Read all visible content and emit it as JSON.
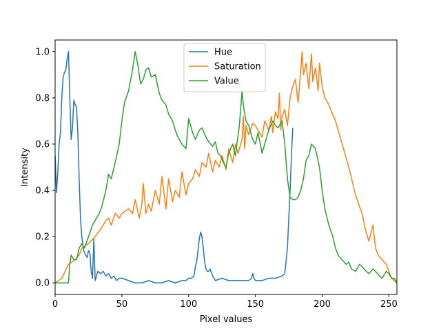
{
  "chart_data": {
    "type": "line",
    "title": "",
    "xlabel": "Pixel values",
    "ylabel": "Intensity",
    "xlim": [
      0,
      256
    ],
    "ylim": [
      -0.05,
      1.05
    ],
    "xticks": [
      0,
      50,
      100,
      150,
      200,
      250
    ],
    "yticks": [
      0.0,
      0.2,
      0.4,
      0.6,
      0.8,
      1.0
    ],
    "xtick_labels": [
      "0",
      "50",
      "100",
      "150",
      "200",
      "250"
    ],
    "ytick_labels": [
      "0.0",
      "0.2",
      "0.4",
      "0.6",
      "0.8",
      "1.0"
    ],
    "grid": false,
    "legend": "top-center",
    "series": [
      {
        "name": "Hue",
        "color": "#1f77b4",
        "x": [
          0,
          1,
          2,
          3,
          4,
          5,
          6,
          7,
          8,
          9,
          10,
          11,
          12,
          13,
          14,
          15,
          16,
          17,
          18,
          19,
          20,
          21,
          22,
          23,
          24,
          25,
          26,
          27,
          28,
          29,
          30,
          32,
          34,
          36,
          38,
          40,
          42,
          44,
          46,
          48,
          50,
          55,
          60,
          65,
          70,
          75,
          80,
          85,
          90,
          95,
          98,
          100,
          102,
          104,
          105,
          106,
          107,
          108,
          109,
          110,
          111,
          112,
          113,
          114,
          115,
          116,
          118,
          120,
          125,
          130,
          135,
          140,
          145,
          147,
          148,
          149,
          150,
          155,
          160,
          165,
          170,
          172,
          174,
          175,
          176,
          177,
          178
        ],
        "y": [
          0.55,
          0.39,
          0.48,
          0.6,
          0.65,
          0.8,
          0.89,
          0.91,
          0.92,
          0.97,
          1.0,
          0.8,
          0.62,
          0.67,
          0.79,
          0.77,
          0.76,
          0.65,
          0.45,
          0.28,
          0.2,
          0.15,
          0.13,
          0.12,
          0.11,
          0.14,
          0.13,
          0.05,
          0.02,
          0.19,
          0.01,
          0.05,
          0.04,
          0.05,
          0.03,
          0.04,
          0.02,
          0.03,
          0.01,
          0.02,
          0.02,
          0.01,
          0.0,
          0.0,
          0.01,
          0.0,
          0.0,
          0.01,
          0.0,
          0.01,
          0.01,
          0.02,
          0.02,
          0.03,
          0.07,
          0.09,
          0.14,
          0.19,
          0.22,
          0.2,
          0.15,
          0.09,
          0.06,
          0.05,
          0.05,
          0.06,
          0.03,
          0.01,
          0.02,
          0.01,
          0.01,
          0.01,
          0.01,
          0.02,
          0.04,
          0.02,
          0.01,
          0.01,
          0.02,
          0.02,
          0.03,
          0.04,
          0.15,
          0.28,
          0.4,
          0.55,
          0.67
        ]
      },
      {
        "name": "Saturation",
        "color": "#ff7f0e",
        "x": [
          0,
          5,
          10,
          15,
          18,
          20,
          25,
          30,
          35,
          38,
          40,
          42,
          45,
          48,
          50,
          55,
          58,
          60,
          63,
          65,
          66,
          68,
          70,
          72,
          75,
          78,
          80,
          83,
          85,
          88,
          90,
          93,
          95,
          98,
          100,
          103,
          105,
          108,
          110,
          113,
          115,
          118,
          120,
          123,
          125,
          128,
          130,
          133,
          135,
          137,
          140,
          141,
          142,
          143,
          145,
          148,
          150,
          152,
          155,
          157,
          160,
          162,
          163,
          165,
          167,
          168,
          169,
          170,
          172,
          174,
          176,
          178,
          180,
          182,
          184,
          185,
          186,
          188,
          190,
          192,
          193,
          195,
          197,
          198,
          200,
          202,
          205,
          210,
          215,
          220,
          225,
          228,
          230,
          232,
          235,
          238,
          240,
          242,
          245,
          248,
          250,
          252,
          254,
          256
        ],
        "y": [
          0.0,
          0.02,
          0.08,
          0.1,
          0.12,
          0.15,
          0.17,
          0.2,
          0.24,
          0.27,
          0.28,
          0.25,
          0.3,
          0.28,
          0.3,
          0.32,
          0.3,
          0.36,
          0.28,
          0.34,
          0.43,
          0.3,
          0.34,
          0.31,
          0.4,
          0.34,
          0.46,
          0.32,
          0.45,
          0.35,
          0.4,
          0.37,
          0.48,
          0.38,
          0.43,
          0.45,
          0.49,
          0.46,
          0.52,
          0.5,
          0.56,
          0.48,
          0.53,
          0.5,
          0.55,
          0.49,
          0.58,
          0.52,
          0.6,
          0.56,
          0.62,
          0.72,
          0.58,
          0.68,
          0.64,
          0.69,
          0.68,
          0.66,
          0.63,
          0.7,
          0.66,
          0.72,
          0.65,
          0.74,
          0.71,
          0.82,
          0.66,
          0.72,
          0.75,
          0.68,
          0.8,
          0.85,
          0.88,
          0.78,
          0.92,
          1.0,
          0.9,
          0.95,
          0.84,
          0.99,
          0.87,
          0.93,
          0.83,
          0.95,
          0.85,
          0.8,
          0.77,
          0.7,
          0.6,
          0.5,
          0.38,
          0.33,
          0.3,
          0.24,
          0.18,
          0.25,
          0.15,
          0.12,
          0.1,
          0.08,
          0.05,
          0.02,
          0.01,
          0.0
        ]
      },
      {
        "name": "Value",
        "color": "#2ca02c",
        "x": [
          0,
          5,
          10,
          11,
          12,
          14,
          16,
          18,
          20,
          22,
          25,
          28,
          30,
          33,
          35,
          38,
          40,
          42,
          45,
          48,
          50,
          52,
          55,
          58,
          60,
          62,
          64,
          66,
          68,
          70,
          72,
          75,
          78,
          80,
          83,
          85,
          88,
          90,
          92,
          95,
          98,
          100,
          103,
          105,
          108,
          110,
          113,
          115,
          118,
          120,
          122,
          124,
          126,
          128,
          130,
          133,
          135,
          138,
          140,
          141,
          142,
          143,
          145,
          148,
          150,
          152,
          155,
          158,
          160,
          163,
          165,
          167,
          170,
          172,
          174,
          176,
          178,
          180,
          182,
          184,
          186,
          188,
          190,
          192,
          195,
          198,
          200,
          202,
          205,
          208,
          210,
          212,
          215,
          218,
          220,
          222,
          225,
          228,
          230,
          233,
          235,
          238,
          240,
          243,
          245,
          248,
          250,
          252,
          254,
          256
        ],
        "y": [
          0.0,
          0.0,
          0.0,
          0.08,
          0.12,
          0.1,
          0.1,
          0.15,
          0.17,
          0.15,
          0.2,
          0.25,
          0.27,
          0.3,
          0.33,
          0.4,
          0.47,
          0.45,
          0.52,
          0.6,
          0.7,
          0.78,
          0.83,
          0.92,
          1.0,
          0.94,
          0.86,
          0.88,
          0.92,
          0.93,
          0.89,
          0.9,
          0.82,
          0.79,
          0.77,
          0.73,
          0.7,
          0.66,
          0.63,
          0.6,
          0.58,
          0.71,
          0.65,
          0.62,
          0.66,
          0.67,
          0.63,
          0.61,
          0.59,
          0.61,
          0.56,
          0.55,
          0.52,
          0.5,
          0.56,
          0.6,
          0.55,
          0.68,
          0.83,
          0.77,
          0.73,
          0.7,
          0.68,
          0.62,
          0.6,
          0.65,
          0.56,
          0.62,
          0.66,
          0.7,
          0.68,
          0.67,
          0.7,
          0.6,
          0.45,
          0.37,
          0.36,
          0.36,
          0.37,
          0.4,
          0.45,
          0.53,
          0.55,
          0.6,
          0.58,
          0.5,
          0.4,
          0.32,
          0.25,
          0.2,
          0.15,
          0.12,
          0.1,
          0.08,
          0.09,
          0.06,
          0.05,
          0.08,
          0.07,
          0.05,
          0.04,
          0.06,
          0.05,
          0.03,
          0.02,
          0.05,
          0.04,
          0.02,
          0.02,
          0.0
        ]
      }
    ]
  }
}
